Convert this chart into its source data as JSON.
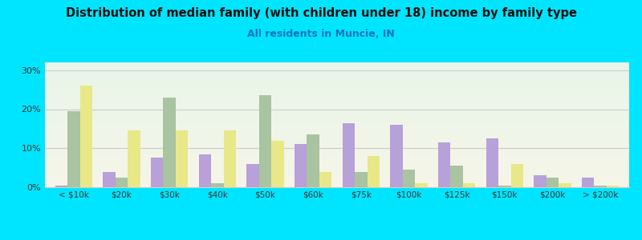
{
  "title": "Distribution of median family (with children under 18) income by family type",
  "subtitle": "All residents in Muncie, IN",
  "categories": [
    "< $10k",
    "$20k",
    "$30k",
    "$40k",
    "$50k",
    "$60k",
    "$75k",
    "$100k",
    "$125k",
    "$150k",
    "$200k",
    "> $200k"
  ],
  "married_couple": [
    0.5,
    4.0,
    7.5,
    8.5,
    6.0,
    11.0,
    16.5,
    16.0,
    11.5,
    12.5,
    3.0,
    2.5
  ],
  "male_no_wife": [
    19.5,
    2.5,
    23.0,
    1.0,
    23.5,
    13.5,
    4.0,
    4.5,
    5.5,
    0.5,
    2.5,
    0.5
  ],
  "female_no_husband": [
    26.0,
    14.5,
    14.5,
    14.5,
    12.0,
    4.0,
    8.0,
    1.0,
    1.0,
    6.0,
    1.0,
    0.5
  ],
  "married_color": "#b8a0d8",
  "male_color": "#a8c4a0",
  "female_color": "#e8e888",
  "bg_color_top": "#e8f5e8",
  "bg_color_bottom": "#f5f5e8",
  "outer_bg": "#00e5ff",
  "ylim": [
    0,
    32
  ],
  "yticks": [
    0,
    10,
    20,
    30
  ],
  "ytick_labels": [
    "0%",
    "10%",
    "20%",
    "30%"
  ]
}
